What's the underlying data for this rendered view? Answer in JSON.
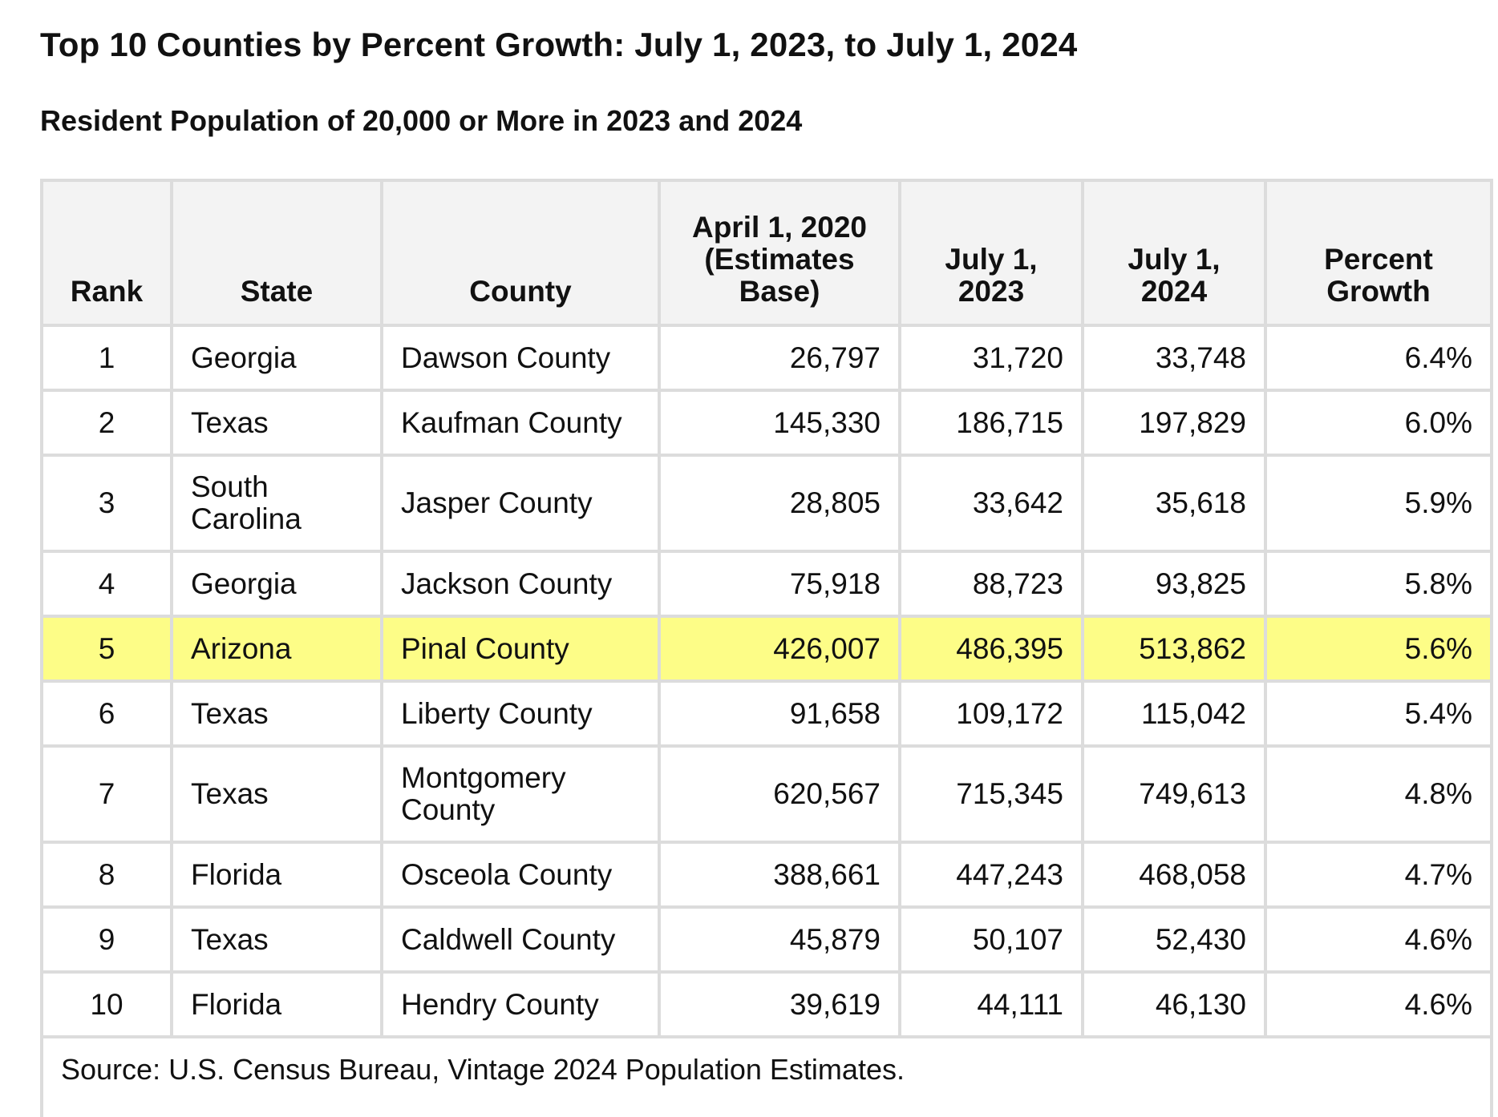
{
  "title": "Top 10 Counties by Percent Growth: July 1, 2023, to July 1, 2024",
  "subtitle": "Resident Population of 20,000 or More in 2023 and 2024",
  "headers": {
    "rank": "Rank",
    "state": "State",
    "county": "County",
    "base_line1": "April 1, 2020",
    "base_line2": "(Estimates",
    "base_line3": "Base)",
    "y2023_line1": "July 1,",
    "y2023_line2": "2023",
    "y2024_line1": "July 1,",
    "y2024_line2": "2024",
    "growth_line1": "Percent",
    "growth_line2": "Growth"
  },
  "rows": [
    {
      "rank": "1",
      "state_line1": "Georgia",
      "state_line2": "",
      "county_line1": "Dawson County",
      "county_line2": "",
      "base": "26,797",
      "y2023": "31,720",
      "y2024": "33,748",
      "growth": "6.4%"
    },
    {
      "rank": "2",
      "state_line1": "Texas",
      "state_line2": "",
      "county_line1": "Kaufman County",
      "county_line2": "",
      "base": "145,330",
      "y2023": "186,715",
      "y2024": "197,829",
      "growth": "6.0%"
    },
    {
      "rank": "3",
      "state_line1": "South",
      "state_line2": "Carolina",
      "county_line1": "Jasper County",
      "county_line2": "",
      "base": "28,805",
      "y2023": "33,642",
      "y2024": "35,618",
      "growth": "5.9%"
    },
    {
      "rank": "4",
      "state_line1": "Georgia",
      "state_line2": "",
      "county_line1": "Jackson County",
      "county_line2": "",
      "base": "75,918",
      "y2023": "88,723",
      "y2024": "93,825",
      "growth": "5.8%"
    },
    {
      "rank": "5",
      "state_line1": "Arizona",
      "state_line2": "",
      "county_line1": "Pinal County",
      "county_line2": "",
      "base": "426,007",
      "y2023": "486,395",
      "y2024": "513,862",
      "growth": "5.6%"
    },
    {
      "rank": "6",
      "state_line1": "Texas",
      "state_line2": "",
      "county_line1": "Liberty County",
      "county_line2": "",
      "base": "91,658",
      "y2023": "109,172",
      "y2024": "115,042",
      "growth": "5.4%"
    },
    {
      "rank": "7",
      "state_line1": "Texas",
      "state_line2": "",
      "county_line1": "Montgomery",
      "county_line2": "County",
      "base": "620,567",
      "y2023": "715,345",
      "y2024": "749,613",
      "growth": "4.8%"
    },
    {
      "rank": "8",
      "state_line1": "Florida",
      "state_line2": "",
      "county_line1": "Osceola County",
      "county_line2": "",
      "base": "388,661",
      "y2023": "447,243",
      "y2024": "468,058",
      "growth": "4.7%"
    },
    {
      "rank": "9",
      "state_line1": "Texas",
      "state_line2": "",
      "county_line1": "Caldwell County",
      "county_line2": "",
      "base": "45,879",
      "y2023": "50,107",
      "y2024": "52,430",
      "growth": "4.6%"
    },
    {
      "rank": "10",
      "state_line1": "Florida",
      "state_line2": "",
      "county_line1": "Hendry County",
      "county_line2": "",
      "base": "39,619",
      "y2023": "44,111",
      "y2024": "46,130",
      "growth": "4.6%"
    }
  ],
  "highlight_row_rank": "5",
  "highlight_color": "#fdfd87",
  "source": "Source: U.S. Census Bureau, Vintage 2024 Population Estimates."
}
